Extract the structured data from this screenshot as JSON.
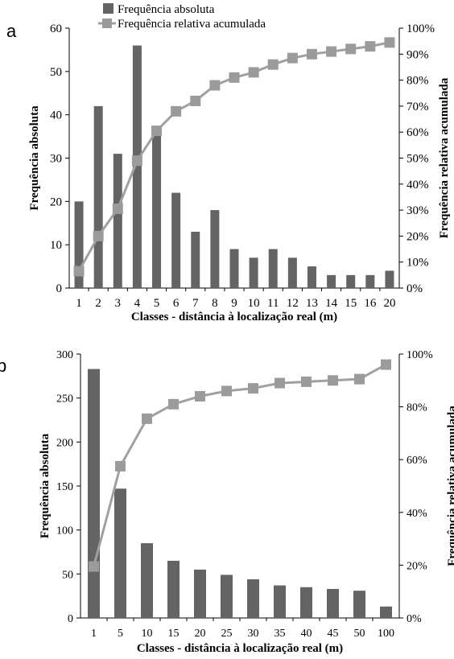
{
  "panels": [
    {
      "letter": "a"
    },
    {
      "letter": "b"
    }
  ],
  "colors": {
    "bar": "#646464",
    "line": "#a0a0a0",
    "marker": "#9b9b9b",
    "axis": "#000000",
    "text": "#000000"
  },
  "chart_data": [
    {
      "type": "bar",
      "categories": [
        "1",
        "2",
        "3",
        "4",
        "5",
        "6",
        "7",
        "8",
        "9",
        "10",
        "11",
        "12",
        "13",
        "14",
        "15",
        "16",
        "20"
      ],
      "series": [
        {
          "name": "Frequência absoluta",
          "type": "bar",
          "axis": "left",
          "values": [
            20,
            42,
            31,
            56,
            36,
            22,
            13,
            18,
            9,
            7,
            9,
            7,
            5,
            3,
            3,
            3,
            4
          ]
        },
        {
          "name": "Frequência relativa acumulada",
          "type": "line",
          "axis": "right",
          "values": [
            0.065,
            0.2,
            0.305,
            0.49,
            0.605,
            0.68,
            0.72,
            0.78,
            0.81,
            0.83,
            0.86,
            0.885,
            0.9,
            0.91,
            0.92,
            0.93,
            0.945
          ]
        }
      ],
      "xlabel": "Classes - distância à localização real (m)",
      "ylabel": "Frequência absoluta",
      "y2label": "Frequência relativa acumulada",
      "ylim": [
        0,
        60
      ],
      "yticks": [
        0,
        10,
        20,
        30,
        40,
        50,
        60
      ],
      "y2lim": [
        0,
        1
      ],
      "y2ticks": [
        "0%",
        "10%",
        "20%",
        "30%",
        "40%",
        "50%",
        "60%",
        "70%",
        "80%",
        "90%",
        "100%"
      ],
      "legend_position": "top-left",
      "grid": false
    },
    {
      "type": "bar",
      "categories": [
        "1",
        "5",
        "10",
        "15",
        "20",
        "25",
        "30",
        "35",
        "40",
        "45",
        "50",
        "100"
      ],
      "series": [
        {
          "name": "Frequência absoluta",
          "type": "bar",
          "axis": "left",
          "values": [
            283,
            147,
            85,
            65,
            55,
            49,
            44,
            37,
            35,
            33,
            31,
            13
          ]
        },
        {
          "name": "Frequência relativa acumulada",
          "type": "line",
          "axis": "right",
          "values": [
            0.195,
            0.575,
            0.755,
            0.81,
            0.84,
            0.86,
            0.87,
            0.89,
            0.895,
            0.9,
            0.905,
            0.96
          ]
        }
      ],
      "xlabel": "Classes - distância à localização real (m)",
      "ylabel": "Frequência absoluta",
      "y2label": "Frequência relativa acumulada",
      "ylim": [
        0,
        300
      ],
      "yticks": [
        0,
        50,
        100,
        150,
        200,
        250,
        300
      ],
      "y2lim": [
        0,
        1
      ],
      "y2ticks": [
        "0%",
        "20%",
        "40%",
        "60%",
        "80%",
        "100%"
      ],
      "legend_position": "none",
      "grid": false
    }
  ]
}
